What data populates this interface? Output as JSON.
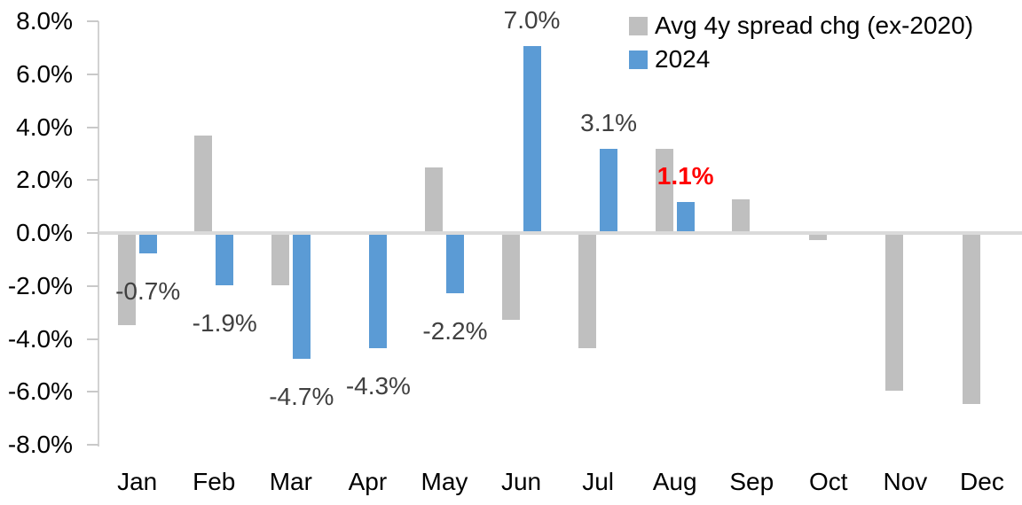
{
  "chart_data": {
    "type": "bar",
    "title": "",
    "categories": [
      "Jan",
      "Feb",
      "Mar",
      "Apr",
      "May",
      "Jun",
      "Jul",
      "Aug",
      "Sep",
      "Oct",
      "Nov",
      "Dec"
    ],
    "series": [
      {
        "name": "Avg 4y spread chg (ex-2020)",
        "color": "#BFBFBF",
        "values": [
          -3.4,
          3.6,
          -1.9,
          null,
          2.4,
          -3.2,
          -4.3,
          3.1,
          1.2,
          -0.2,
          -5.9,
          -6.4
        ]
      },
      {
        "name": "2024",
        "color": "#5B9BD5",
        "values": [
          -0.7,
          -1.9,
          -4.7,
          -4.3,
          -2.2,
          7.0,
          3.1,
          1.1,
          null,
          null,
          null,
          null
        ]
      }
    ],
    "y_axis": {
      "min": -8,
      "max": 8,
      "step": 2,
      "tick_labels": [
        "8.0%",
        "6.0%",
        "4.0%",
        "2.0%",
        "0.0%",
        "-2.0%",
        "-4.0%",
        "-6.0%",
        "-8.0%"
      ],
      "format": "percent"
    },
    "grid": "zero-line-only",
    "legend_position": "top-right",
    "data_labels": [
      {
        "category": "Jan",
        "series": "2024",
        "text": "-0.7%",
        "color": "#404040",
        "bold": false
      },
      {
        "category": "Feb",
        "series": "2024",
        "text": "-1.9%",
        "color": "#404040",
        "bold": false
      },
      {
        "category": "Mar",
        "series": "2024",
        "text": "-4.7%",
        "color": "#404040",
        "bold": false
      },
      {
        "category": "Apr",
        "series": "2024",
        "text": "-4.3%",
        "color": "#404040",
        "bold": false
      },
      {
        "category": "May",
        "series": "2024",
        "text": "-2.2%",
        "color": "#404040",
        "bold": false
      },
      {
        "category": "Jun",
        "series": "2024",
        "text": "7.0%",
        "color": "#404040",
        "bold": false
      },
      {
        "category": "Jul",
        "series": "2024",
        "text": "3.1%",
        "color": "#404040",
        "bold": false
      },
      {
        "category": "Aug",
        "series": "2024",
        "text": "1.1%",
        "color": "#FF0000",
        "bold": true
      }
    ],
    "colors": {
      "axis_line": "#D2D2D2",
      "zero_line": "#DADADA",
      "tick": "#C9C9C9",
      "axis_text": "#000000",
      "label_default": "#404040",
      "label_highlight": "#FF0000"
    }
  }
}
